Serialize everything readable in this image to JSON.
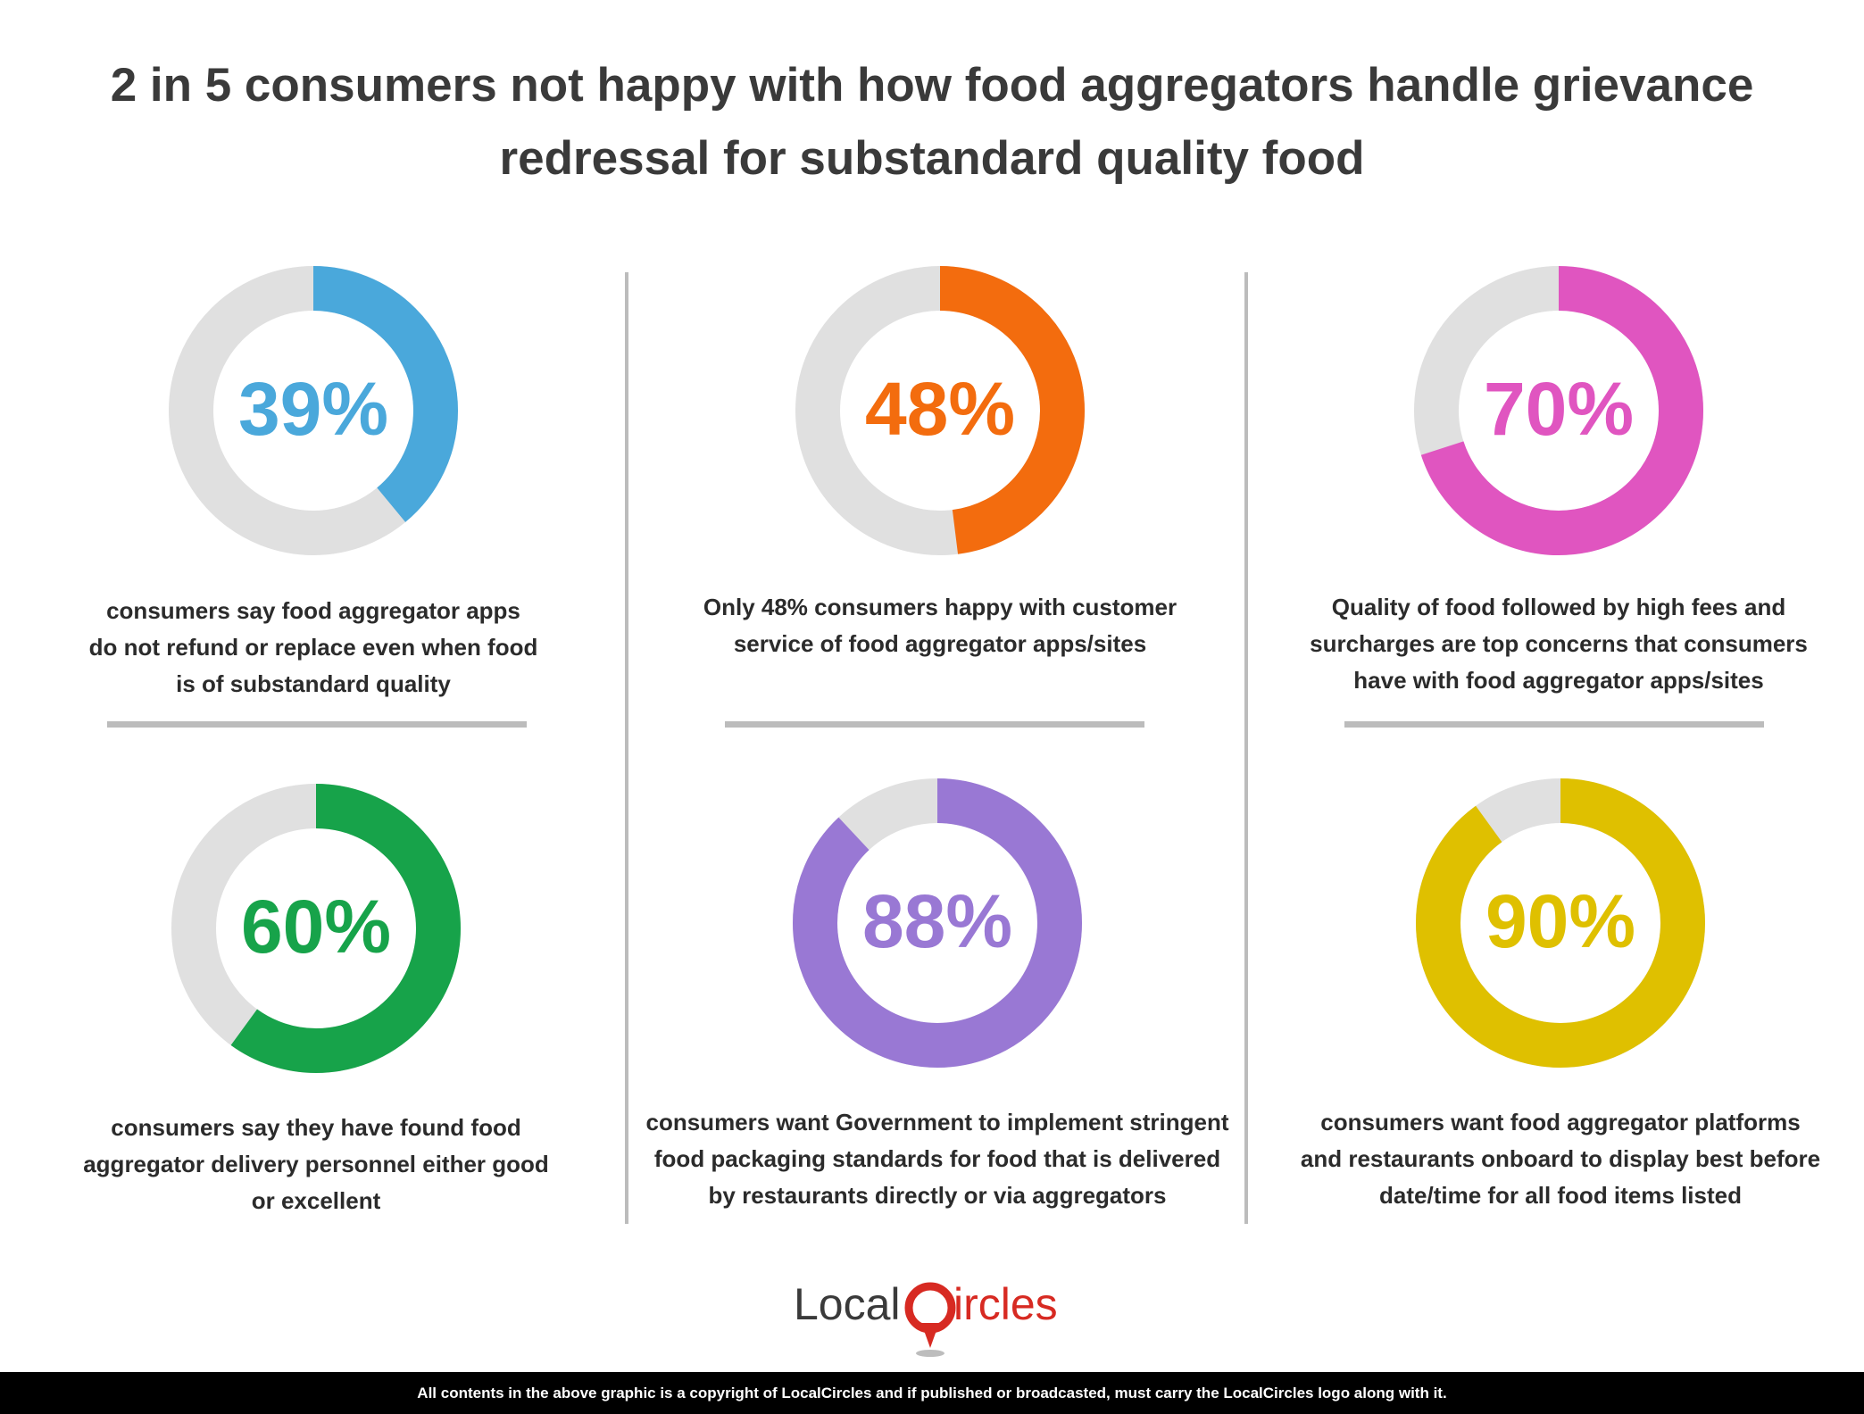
{
  "title_line1": "2 in 5 consumers not happy with how food aggregators handle grievance",
  "title_line2": "redressal for substandard quality food",
  "chart_data": {
    "type": "pie",
    "track_color": "#e0e0e0",
    "stats": [
      {
        "value": 39,
        "label": "39%",
        "color": "#4aa8db",
        "lines": [
          "consumers say food aggregator apps",
          "do not refund or replace even when food",
          "is of substandard quality"
        ]
      },
      {
        "value": 48,
        "label": "48%",
        "color": "#f36c0e",
        "lines": [
          "Only 48% consumers happy with customer",
          "service of food aggregator apps/sites"
        ]
      },
      {
        "value": 70,
        "label": "70%",
        "color": "#e055c0",
        "lines": [
          "Quality of food followed by high fees and",
          "surcharges are top concerns that consumers",
          "have with food aggregator apps/sites"
        ]
      },
      {
        "value": 60,
        "label": "60%",
        "color": "#17a34a",
        "lines": [
          "consumers say they have found food",
          "aggregator delivery personnel either good",
          "or excellent"
        ]
      },
      {
        "value": 88,
        "label": "88%",
        "color": "#9978d4",
        "lines": [
          "consumers want Government to implement stringent",
          "food packaging standards for food that is delivered",
          "by restaurants directly or via aggregators"
        ]
      },
      {
        "value": 90,
        "label": "90%",
        "color": "#dfc000",
        "lines": [
          "consumers want food aggregator platforms",
          "and restaurants onboard to display best before",
          "date/time for all food items listed"
        ]
      }
    ]
  },
  "logo": {
    "text_before": "Local",
    "text_after": "ircles",
    "accent_color": "#d72a22",
    "text_color": "#3a3a3a"
  },
  "footer_text": "All contents in the above graphic is a copyright of LocalCircles and if published or broadcasted, must carry the LocalCircles logo along with it."
}
